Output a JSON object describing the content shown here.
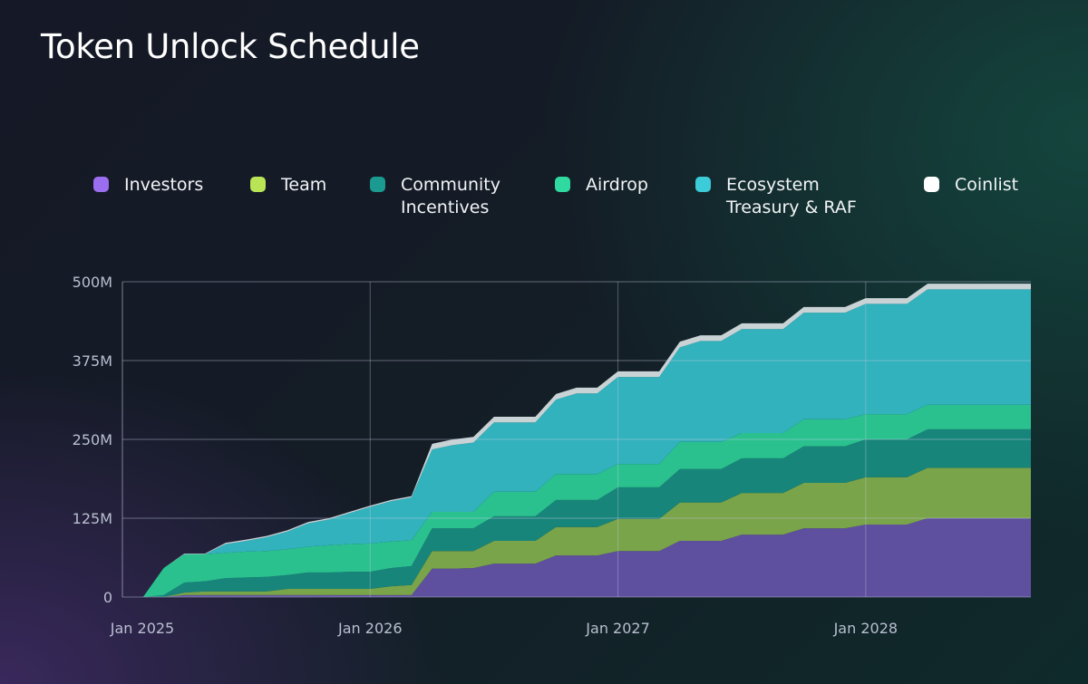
{
  "title": "Token Unlock Schedule",
  "chart_data": {
    "type": "area",
    "stacked": true,
    "title": "Token Unlock Schedule",
    "xlabel": "",
    "ylabel": "",
    "ylim": [
      0,
      500
    ],
    "y_unit": "M",
    "yticks": [
      0,
      125,
      250,
      375,
      500
    ],
    "ytick_labels": [
      "0",
      "125M",
      "250M",
      "375M",
      "500M"
    ],
    "xticks": [
      "2025-01",
      "2026-01",
      "2027-01",
      "2028-01"
    ],
    "xtick_labels": [
      "Jan 2025",
      "Jan 2026",
      "Jan 2027",
      "Jan 2028"
    ],
    "grid": true,
    "legend_position": "top",
    "x": [
      "2025-01",
      "2025-02",
      "2025-03",
      "2025-04",
      "2025-05",
      "2025-06",
      "2025-07",
      "2025-08",
      "2025-09",
      "2025-10",
      "2025-11",
      "2025-12",
      "2026-01",
      "2026-02",
      "2026-03",
      "2026-04",
      "2026-05",
      "2026-06",
      "2026-07",
      "2026-08",
      "2026-09",
      "2026-10",
      "2026-11",
      "2026-12",
      "2027-01",
      "2027-02",
      "2027-03",
      "2027-04",
      "2027-05",
      "2027-06",
      "2027-07",
      "2027-08",
      "2027-09",
      "2027-10",
      "2027-11",
      "2027-12",
      "2028-01",
      "2028-02",
      "2028-03",
      "2028-04",
      "2028-05",
      "2028-06",
      "2028-07",
      "2028-08",
      "2028-09"
    ],
    "series": [
      {
        "name": "Investors",
        "legend_color": "#9b6ef0",
        "fill_color": "#5f4f9f",
        "values": [
          0,
          0,
          0,
          3,
          3,
          3,
          3,
          3,
          3,
          3,
          3,
          3,
          3,
          3,
          3,
          45,
          45,
          46,
          53,
          53,
          53,
          66,
          66,
          66,
          73,
          73,
          73,
          89,
          89,
          89,
          99,
          99,
          99,
          109,
          109,
          109,
          115,
          115,
          115,
          125,
          125,
          125,
          125,
          125,
          125
        ]
      },
      {
        "name": "Team",
        "legend_color": "#b8e455",
        "fill_color": "#7aa449",
        "values": [
          0,
          0,
          0,
          4,
          6,
          6,
          6,
          6,
          10,
          10,
          10,
          10,
          10,
          14,
          16,
          28,
          28,
          27,
          36,
          36,
          36,
          45,
          45,
          45,
          51,
          51,
          51,
          61,
          61,
          61,
          66,
          66,
          66,
          72,
          72,
          72,
          75,
          75,
          75,
          80,
          80,
          80,
          80,
          80,
          80
        ]
      },
      {
        "name": "Community Incentives",
        "legend_color": "#1a9a90",
        "fill_color": "#17857a",
        "values": [
          0,
          0,
          3,
          16,
          16,
          21,
          22,
          23,
          22,
          26,
          26,
          27,
          27,
          29,
          30,
          36,
          36,
          36,
          39,
          39,
          39,
          43,
          43,
          43,
          50,
          50,
          50,
          53,
          53,
          53,
          55,
          55,
          55,
          58,
          58,
          58,
          60,
          60,
          60,
          61,
          61,
          61,
          61,
          61,
          61
        ]
      },
      {
        "name": "Airdrop",
        "legend_color": "#2fd9a0",
        "fill_color": "#2ac18f",
        "values": [
          0,
          0,
          43,
          45,
          43,
          40,
          41,
          41,
          41,
          41,
          43,
          44,
          45,
          42,
          41,
          26,
          26,
          26,
          39,
          39,
          39,
          41,
          41,
          41,
          37,
          37,
          37,
          43,
          43,
          43,
          40,
          40,
          40,
          43,
          43,
          43,
          40,
          40,
          40,
          39,
          39,
          39,
          39,
          39,
          39
        ]
      },
      {
        "name": "Ecosystem Treasury & RAF",
        "legend_color": "#3ccbd8",
        "fill_color": "#31b2bd",
        "values": [
          0,
          0,
          0,
          0,
          0,
          14,
          17,
          22,
          28,
          37,
          41,
          49,
          58,
          64,
          68,
          99,
          106,
          110,
          110,
          110,
          110,
          118,
          128,
          128,
          138,
          138,
          138,
          150,
          160,
          160,
          165,
          165,
          165,
          169,
          169,
          169,
          175,
          175,
          175,
          183,
          183,
          183,
          183,
          183,
          183
        ]
      },
      {
        "name": "Coinlist",
        "legend_color": "#ffffff",
        "fill_color": "#c9d3d6",
        "values": [
          0,
          0,
          0,
          1,
          1,
          2,
          2,
          2,
          2,
          2,
          2,
          2,
          2,
          2,
          2,
          9,
          9,
          9,
          9,
          9,
          9,
          9,
          9,
          9,
          9,
          9,
          9,
          9,
          9,
          9,
          9,
          9,
          9,
          9,
          9,
          9,
          9,
          9,
          9,
          9,
          9,
          9,
          9,
          9,
          9
        ]
      }
    ]
  },
  "legend": [
    {
      "line1": "Investors",
      "line2": ""
    },
    {
      "line1": "Team",
      "line2": ""
    },
    {
      "line1": "Community",
      "line2": "Incentives"
    },
    {
      "line1": "Airdrop",
      "line2": ""
    },
    {
      "line1": "Ecosystem",
      "line2": "Treasury & RAF"
    },
    {
      "line1": "Coinlist",
      "line2": ""
    }
  ]
}
